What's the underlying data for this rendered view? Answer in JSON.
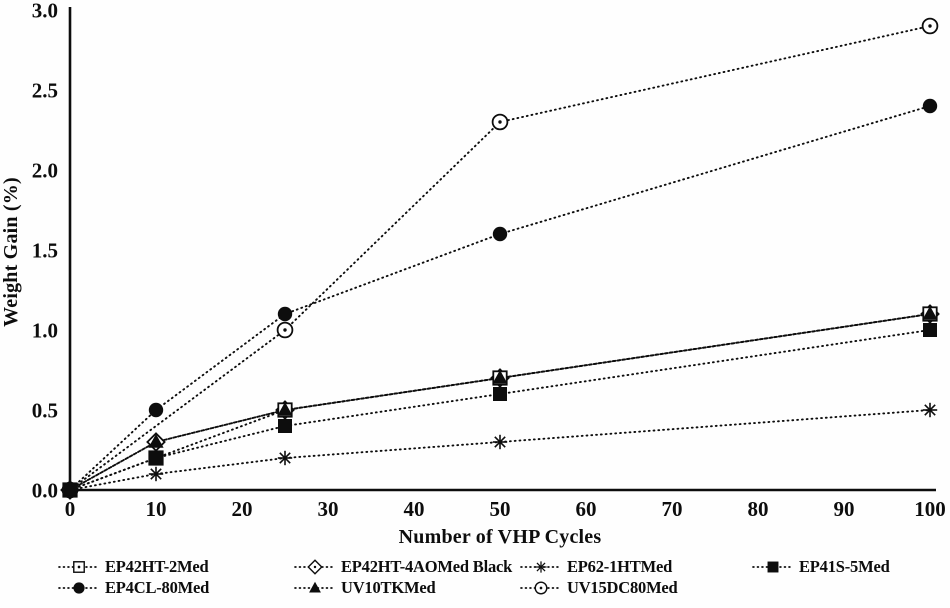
{
  "figure": {
    "background": "#fefefe",
    "ink": "#0d0d0d"
  },
  "chart_data": {
    "type": "line",
    "title": "",
    "xlabel": "Number of VHP Cycles",
    "ylabel": "Weight Gain (%)",
    "xlim": [
      0,
      100
    ],
    "ylim": [
      0,
      3.0
    ],
    "xticks": [
      0,
      10,
      20,
      30,
      40,
      50,
      60,
      70,
      80,
      90,
      100
    ],
    "yticks": [
      "0.0",
      "0.5",
      "1.0",
      "1.5",
      "2.0",
      "2.5",
      "3.0"
    ],
    "grid": false,
    "line_style": "dotted",
    "line_color": "#0d0d0d",
    "legend_position": "bottom",
    "series": [
      {
        "name": "EP42HT-2Med",
        "marker": "open-square-dot",
        "x": [
          0,
          10,
          25,
          50,
          100
        ],
        "y": [
          0,
          0.2,
          0.5,
          0.7,
          1.1
        ]
      },
      {
        "name": "EP42HT-4AOMed Black",
        "marker": "open-diamond-dot",
        "x": [
          0,
          10,
          25,
          50,
          100
        ],
        "y": [
          0,
          0.3,
          0.5,
          0.7,
          1.1
        ]
      },
      {
        "name": "EP62-1HTMed",
        "marker": "asterisk",
        "x": [
          0,
          10,
          25,
          50,
          100
        ],
        "y": [
          0,
          0.1,
          0.2,
          0.3,
          0.5
        ]
      },
      {
        "name": "EP41S-5Med",
        "marker": "filled-square",
        "x": [
          0,
          10,
          25,
          50,
          100
        ],
        "y": [
          0,
          0.2,
          0.4,
          0.6,
          1.0
        ]
      },
      {
        "name": "EP4CL-80Med",
        "marker": "filled-circle",
        "x": [
          0,
          10,
          25,
          50,
          100
        ],
        "y": [
          0,
          0.5,
          1.1,
          1.6,
          2.4
        ]
      },
      {
        "name": "UV10TKMed",
        "marker": "filled-triangle",
        "x": [
          0,
          10,
          25,
          50,
          100
        ],
        "y": [
          0,
          0.3,
          0.5,
          0.7,
          1.1
        ]
      },
      {
        "name": "UV15DC80Med",
        "marker": "open-circle-dot",
        "x": [
          0,
          25,
          50,
          100
        ],
        "y": [
          0,
          1.0,
          2.3,
          2.9
        ]
      }
    ],
    "legend_rows": [
      [
        "EP42HT-2Med",
        "EP42HT-4AOMed Black",
        "EP62-1HTMed",
        "EP41S-5Med"
      ],
      [
        "EP4CL-80Med",
        "UV10TKMed",
        "UV15DC80Med"
      ]
    ]
  }
}
